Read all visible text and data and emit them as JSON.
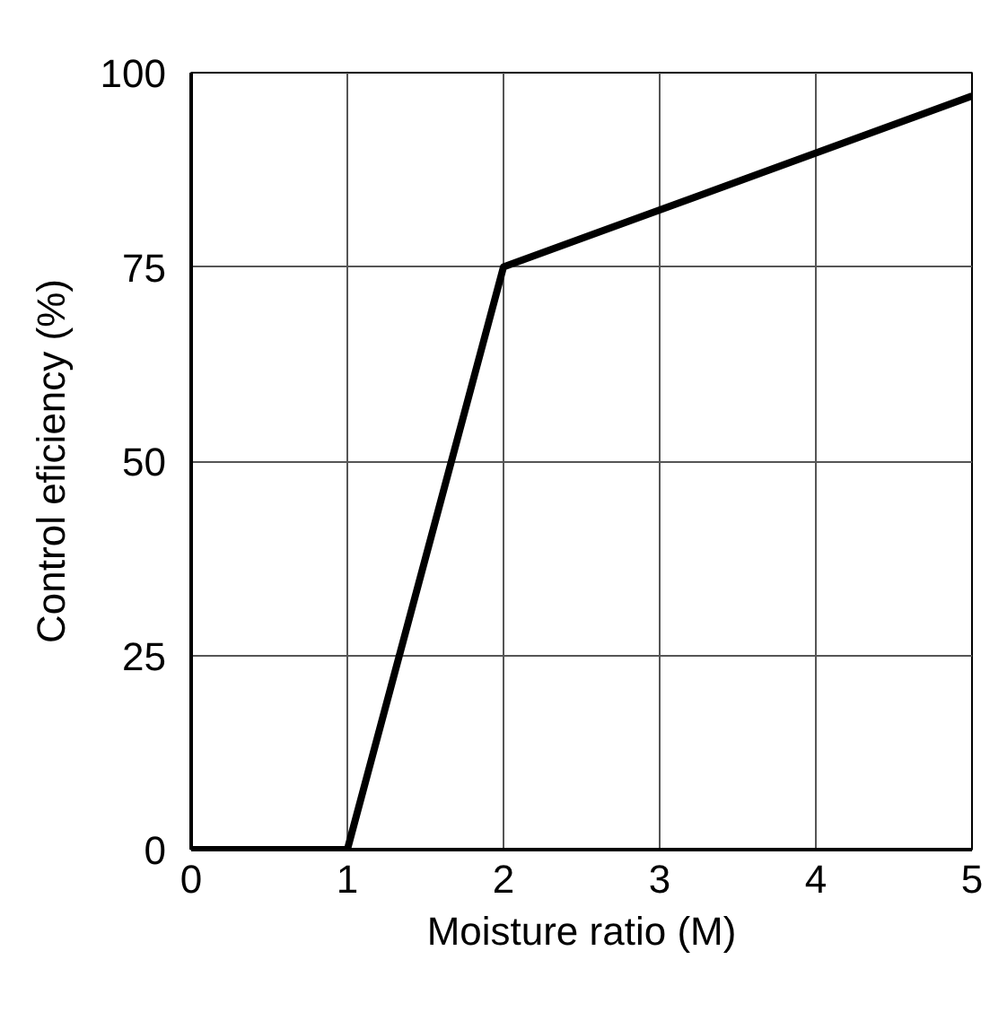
{
  "chart_data": {
    "type": "line",
    "xlabel": "Moisture ratio (M)",
    "ylabel": "Control eficiency (%)",
    "x": [
      0,
      1,
      2,
      5
    ],
    "series": [
      {
        "color": "#000000",
        "values": [
          0,
          0,
          75,
          97
        ]
      }
    ],
    "xlim": [
      0,
      5
    ],
    "xticks": [
      0,
      1,
      2,
      3,
      4,
      5
    ],
    "ylim": [
      0,
      100
    ],
    "yticks": [
      0,
      25,
      50,
      75,
      100
    ],
    "grid": true,
    "marker": "none",
    "line_style": "solid"
  }
}
